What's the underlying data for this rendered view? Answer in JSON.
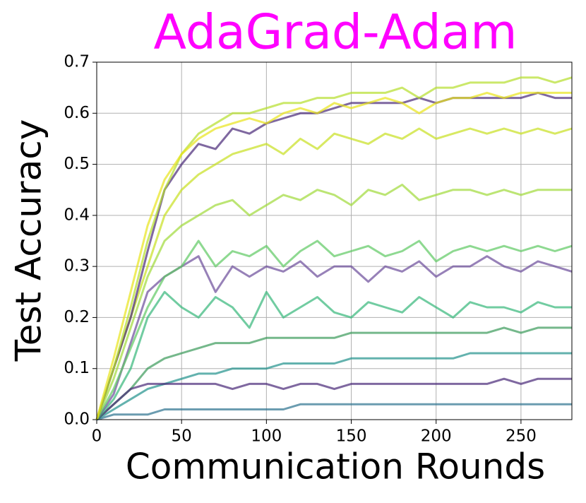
{
  "chart_data": {
    "type": "line",
    "title": "AdaGrad-Adam",
    "title_color": "#ff00ff",
    "x_label": "Communication Rounds",
    "y_label": "Test Accuracy",
    "x": [
      0,
      10,
      20,
      30,
      40,
      50,
      60,
      70,
      80,
      90,
      100,
      110,
      120,
      130,
      140,
      150,
      160,
      170,
      180,
      190,
      200,
      210,
      220,
      230,
      240,
      250,
      260,
      270,
      280
    ],
    "xlim": [
      0,
      280
    ],
    "xticks": [
      0,
      50,
      100,
      150,
      200,
      250
    ],
    "ylim": [
      0,
      0.7
    ],
    "yticks": [
      0.0,
      0.1,
      0.2,
      0.3,
      0.4,
      0.5,
      0.6,
      0.7
    ],
    "grid": true,
    "series": [
      {
        "color": "#2c728e",
        "values": [
          0,
          0.01,
          0.01,
          0.01,
          0.02,
          0.02,
          0.02,
          0.02,
          0.02,
          0.02,
          0.02,
          0.02,
          0.03,
          0.03,
          0.03,
          0.03,
          0.03,
          0.03,
          0.03,
          0.03,
          0.03,
          0.03,
          0.03,
          0.03,
          0.03,
          0.03,
          0.03,
          0.03,
          0.03
        ]
      },
      {
        "color": "#21918c",
        "values": [
          0,
          0.02,
          0.04,
          0.06,
          0.07,
          0.08,
          0.09,
          0.09,
          0.1,
          0.1,
          0.1,
          0.11,
          0.11,
          0.11,
          0.11,
          0.12,
          0.12,
          0.12,
          0.12,
          0.12,
          0.12,
          0.12,
          0.13,
          0.13,
          0.13,
          0.13,
          0.13,
          0.13,
          0.13
        ]
      },
      {
        "color": "#3a9a5a",
        "values": [
          0,
          0.03,
          0.06,
          0.1,
          0.12,
          0.13,
          0.14,
          0.15,
          0.15,
          0.15,
          0.16,
          0.16,
          0.16,
          0.16,
          0.16,
          0.17,
          0.17,
          0.17,
          0.17,
          0.17,
          0.17,
          0.17,
          0.17,
          0.17,
          0.18,
          0.17,
          0.18,
          0.18,
          0.18
        ]
      },
      {
        "color": "#482878",
        "values": [
          0,
          0.03,
          0.06,
          0.07,
          0.07,
          0.07,
          0.07,
          0.07,
          0.06,
          0.07,
          0.07,
          0.06,
          0.07,
          0.07,
          0.06,
          0.07,
          0.07,
          0.07,
          0.07,
          0.07,
          0.07,
          0.07,
          0.07,
          0.07,
          0.08,
          0.07,
          0.08,
          0.08,
          0.08
        ]
      },
      {
        "color": "#35b779",
        "values": [
          0,
          0.04,
          0.1,
          0.2,
          0.25,
          0.22,
          0.2,
          0.24,
          0.22,
          0.18,
          0.25,
          0.2,
          0.22,
          0.24,
          0.21,
          0.2,
          0.23,
          0.22,
          0.21,
          0.24,
          0.22,
          0.2,
          0.23,
          0.22,
          0.22,
          0.21,
          0.23,
          0.22,
          0.22
        ]
      },
      {
        "color": "#6b4c9a",
        "values": [
          0,
          0.05,
          0.15,
          0.25,
          0.28,
          0.3,
          0.32,
          0.25,
          0.3,
          0.28,
          0.3,
          0.29,
          0.31,
          0.28,
          0.3,
          0.3,
          0.27,
          0.3,
          0.29,
          0.31,
          0.28,
          0.3,
          0.3,
          0.32,
          0.3,
          0.29,
          0.31,
          0.3,
          0.29
        ]
      },
      {
        "color": "#5ec962",
        "values": [
          0,
          0.06,
          0.14,
          0.22,
          0.28,
          0.3,
          0.35,
          0.3,
          0.33,
          0.32,
          0.34,
          0.3,
          0.33,
          0.35,
          0.32,
          0.33,
          0.34,
          0.32,
          0.33,
          0.35,
          0.31,
          0.33,
          0.34,
          0.33,
          0.34,
          0.33,
          0.34,
          0.33,
          0.34
        ]
      },
      {
        "color": "#a0da39",
        "values": [
          0,
          0.08,
          0.18,
          0.28,
          0.35,
          0.38,
          0.4,
          0.42,
          0.43,
          0.4,
          0.42,
          0.44,
          0.43,
          0.45,
          0.44,
          0.42,
          0.45,
          0.44,
          0.46,
          0.43,
          0.44,
          0.45,
          0.45,
          0.44,
          0.45,
          0.44,
          0.45,
          0.45,
          0.45
        ]
      },
      {
        "color": "#c8e020",
        "values": [
          0,
          0.1,
          0.2,
          0.3,
          0.4,
          0.45,
          0.48,
          0.5,
          0.52,
          0.53,
          0.54,
          0.52,
          0.55,
          0.53,
          0.56,
          0.55,
          0.54,
          0.56,
          0.55,
          0.57,
          0.55,
          0.56,
          0.57,
          0.56,
          0.57,
          0.56,
          0.57,
          0.56,
          0.57
        ]
      },
      {
        "color": "#482878",
        "values": [
          0,
          0.1,
          0.2,
          0.33,
          0.45,
          0.5,
          0.54,
          0.53,
          0.57,
          0.56,
          0.58,
          0.59,
          0.6,
          0.6,
          0.61,
          0.62,
          0.62,
          0.62,
          0.62,
          0.63,
          0.62,
          0.63,
          0.63,
          0.63,
          0.63,
          0.63,
          0.64,
          0.63,
          0.63
        ]
      },
      {
        "color": "#b5de2b",
        "values": [
          0,
          0.1,
          0.22,
          0.35,
          0.45,
          0.52,
          0.56,
          0.58,
          0.6,
          0.6,
          0.61,
          0.62,
          0.62,
          0.63,
          0.63,
          0.64,
          0.64,
          0.64,
          0.65,
          0.63,
          0.65,
          0.65,
          0.66,
          0.66,
          0.66,
          0.67,
          0.67,
          0.66,
          0.67
        ]
      },
      {
        "color": "#e8e419",
        "values": [
          0,
          0.12,
          0.25,
          0.38,
          0.47,
          0.52,
          0.55,
          0.57,
          0.58,
          0.59,
          0.58,
          0.6,
          0.61,
          0.6,
          0.62,
          0.61,
          0.62,
          0.63,
          0.62,
          0.6,
          0.62,
          0.63,
          0.63,
          0.64,
          0.63,
          0.64,
          0.64,
          0.64,
          0.64
        ]
      }
    ]
  }
}
